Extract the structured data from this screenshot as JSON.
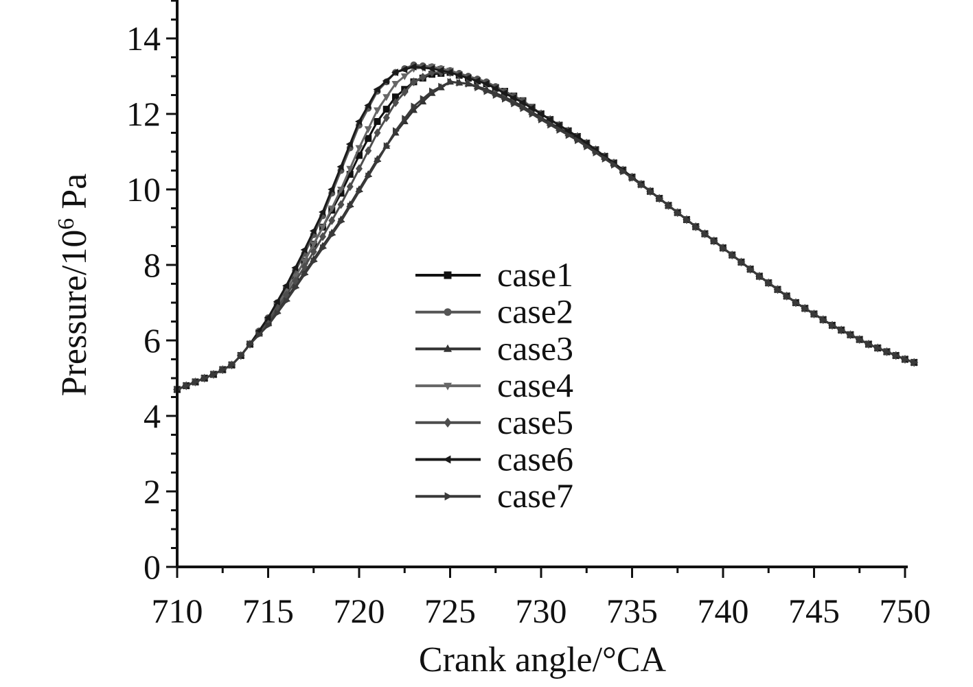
{
  "chart_data": {
    "type": "line",
    "title": "",
    "xlabel": "Crank angle/°CA",
    "ylabel": {
      "prefix": "Pressure/10",
      "superscript": "6",
      "suffix": " Pa"
    },
    "xlim": [
      710,
      751
    ],
    "ylim": [
      0,
      15
    ],
    "xticks": [
      "710",
      "715",
      "720",
      "725",
      "730",
      "735",
      "740",
      "745",
      "750"
    ],
    "yticks": [
      "0",
      "2",
      "4",
      "6",
      "8",
      "10",
      "12",
      "14"
    ],
    "grid": false,
    "legend_position": "center",
    "series": [
      {
        "name": "case1",
        "color": "#111111",
        "marker": "square",
        "points": [
          [
            710,
            4.7
          ],
          [
            711,
            4.9
          ],
          [
            712,
            5.1
          ],
          [
            713,
            5.35
          ],
          [
            713.5,
            5.6
          ],
          [
            714,
            5.9
          ],
          [
            715,
            6.5
          ],
          [
            716,
            7.3
          ],
          [
            717,
            8.1
          ],
          [
            718,
            9.0
          ],
          [
            719,
            9.9
          ],
          [
            720,
            10.9
          ],
          [
            721,
            11.8
          ],
          [
            722,
            12.45
          ],
          [
            723,
            12.85
          ],
          [
            724,
            13.05
          ],
          [
            725,
            13.1
          ],
          [
            726,
            12.95
          ],
          [
            727,
            12.8
          ],
          [
            728,
            12.6
          ],
          [
            729,
            12.35
          ],
          [
            730,
            12.0
          ],
          [
            732,
            11.4
          ],
          [
            734,
            10.7
          ],
          [
            736,
            9.95
          ],
          [
            738,
            9.2
          ],
          [
            740,
            8.45
          ],
          [
            742,
            7.7
          ],
          [
            744,
            7.0
          ],
          [
            746,
            6.4
          ],
          [
            748,
            5.9
          ],
          [
            750,
            5.5
          ],
          [
            750.6,
            5.4
          ]
        ]
      },
      {
        "name": "case2",
        "color": "#555555",
        "marker": "circle",
        "points": [
          [
            710,
            4.7
          ],
          [
            711,
            4.9
          ],
          [
            712,
            5.1
          ],
          [
            713,
            5.35
          ],
          [
            713.5,
            5.6
          ],
          [
            714,
            5.9
          ],
          [
            715,
            6.6
          ],
          [
            716,
            7.4
          ],
          [
            717,
            8.3
          ],
          [
            718,
            9.3
          ],
          [
            719,
            10.5
          ],
          [
            720,
            11.7
          ],
          [
            721,
            12.6
          ],
          [
            722,
            13.1
          ],
          [
            723,
            13.3
          ],
          [
            724,
            13.25
          ],
          [
            725,
            13.15
          ],
          [
            726,
            13.0
          ],
          [
            727,
            12.85
          ],
          [
            728,
            12.6
          ],
          [
            729,
            12.35
          ],
          [
            730,
            12.0
          ],
          [
            732,
            11.4
          ],
          [
            734,
            10.7
          ],
          [
            736,
            9.95
          ],
          [
            738,
            9.2
          ],
          [
            740,
            8.45
          ],
          [
            742,
            7.7
          ],
          [
            744,
            7.0
          ],
          [
            746,
            6.4
          ],
          [
            748,
            5.9
          ],
          [
            750,
            5.5
          ],
          [
            750.6,
            5.4
          ]
        ]
      },
      {
        "name": "case3",
        "color": "#333333",
        "marker": "triangle-up",
        "points": [
          [
            710,
            4.7
          ],
          [
            711,
            4.9
          ],
          [
            712,
            5.1
          ],
          [
            713,
            5.35
          ],
          [
            713.5,
            5.6
          ],
          [
            714,
            5.9
          ],
          [
            715,
            6.45
          ],
          [
            716,
            7.1
          ],
          [
            717,
            7.8
          ],
          [
            718,
            8.5
          ],
          [
            719,
            9.2
          ],
          [
            720,
            10.0
          ],
          [
            721,
            10.8
          ],
          [
            722,
            11.5
          ],
          [
            723,
            12.1
          ],
          [
            724,
            12.55
          ],
          [
            725,
            12.85
          ],
          [
            726,
            12.8
          ],
          [
            727,
            12.65
          ],
          [
            728,
            12.45
          ],
          [
            729,
            12.2
          ],
          [
            730,
            11.9
          ],
          [
            732,
            11.35
          ],
          [
            734,
            10.7
          ],
          [
            736,
            9.95
          ],
          [
            738,
            9.2
          ],
          [
            740,
            8.45
          ],
          [
            742,
            7.7
          ],
          [
            744,
            7.0
          ],
          [
            746,
            6.4
          ],
          [
            748,
            5.9
          ],
          [
            750,
            5.5
          ],
          [
            750.6,
            5.4
          ]
        ]
      },
      {
        "name": "case4",
        "color": "#666666",
        "marker": "triangle-down",
        "points": [
          [
            710,
            4.7
          ],
          [
            711,
            4.9
          ],
          [
            712,
            5.1
          ],
          [
            713,
            5.35
          ],
          [
            713.5,
            5.6
          ],
          [
            714,
            5.9
          ],
          [
            715,
            6.55
          ],
          [
            716,
            7.3
          ],
          [
            717,
            8.1
          ],
          [
            718,
            9.0
          ],
          [
            719,
            10.0
          ],
          [
            720,
            11.1
          ],
          [
            721,
            12.1
          ],
          [
            722,
            12.8
          ],
          [
            723,
            13.2
          ],
          [
            724,
            13.25
          ],
          [
            725,
            13.15
          ],
          [
            726,
            12.95
          ],
          [
            727,
            12.8
          ],
          [
            728,
            12.55
          ],
          [
            729,
            12.3
          ],
          [
            730,
            12.0
          ],
          [
            732,
            11.4
          ],
          [
            734,
            10.7
          ],
          [
            736,
            9.95
          ],
          [
            738,
            9.2
          ],
          [
            740,
            8.45
          ],
          [
            742,
            7.7
          ],
          [
            744,
            7.0
          ],
          [
            746,
            6.4
          ],
          [
            748,
            5.9
          ],
          [
            750,
            5.5
          ],
          [
            750.6,
            5.4
          ]
        ]
      },
      {
        "name": "case5",
        "color": "#4d4d4d",
        "marker": "diamond",
        "points": [
          [
            710,
            4.7
          ],
          [
            711,
            4.9
          ],
          [
            712,
            5.1
          ],
          [
            713,
            5.35
          ],
          [
            713.5,
            5.6
          ],
          [
            714,
            5.9
          ],
          [
            715,
            6.5
          ],
          [
            716,
            7.2
          ],
          [
            717,
            7.95
          ],
          [
            718,
            8.75
          ],
          [
            719,
            9.6
          ],
          [
            720,
            10.55
          ],
          [
            721,
            11.5
          ],
          [
            722,
            12.3
          ],
          [
            723,
            12.85
          ],
          [
            724,
            13.1
          ],
          [
            725,
            13.1
          ],
          [
            726,
            12.95
          ],
          [
            727,
            12.8
          ],
          [
            728,
            12.55
          ],
          [
            729,
            12.3
          ],
          [
            730,
            12.0
          ],
          [
            732,
            11.4
          ],
          [
            734,
            10.7
          ],
          [
            736,
            9.95
          ],
          [
            738,
            9.2
          ],
          [
            740,
            8.45
          ],
          [
            742,
            7.7
          ],
          [
            744,
            7.0
          ],
          [
            746,
            6.4
          ],
          [
            748,
            5.9
          ],
          [
            750,
            5.5
          ],
          [
            750.6,
            5.4
          ]
        ]
      },
      {
        "name": "case6",
        "color": "#1a1a1a",
        "marker": "triangle-left",
        "points": [
          [
            710,
            4.7
          ],
          [
            711,
            4.9
          ],
          [
            712,
            5.1
          ],
          [
            713,
            5.35
          ],
          [
            713.5,
            5.6
          ],
          [
            714,
            5.9
          ],
          [
            715,
            6.6
          ],
          [
            716,
            7.45
          ],
          [
            717,
            8.4
          ],
          [
            718,
            9.4
          ],
          [
            719,
            10.6
          ],
          [
            720,
            11.8
          ],
          [
            721,
            12.65
          ],
          [
            722,
            13.1
          ],
          [
            723,
            13.25
          ],
          [
            724,
            13.2
          ],
          [
            725,
            13.1
          ],
          [
            726,
            12.95
          ],
          [
            727,
            12.8
          ],
          [
            728,
            12.55
          ],
          [
            729,
            12.3
          ],
          [
            730,
            12.0
          ],
          [
            732,
            11.4
          ],
          [
            734,
            10.7
          ],
          [
            736,
            9.95
          ],
          [
            738,
            9.2
          ],
          [
            740,
            8.45
          ],
          [
            742,
            7.7
          ],
          [
            744,
            7.0
          ],
          [
            746,
            6.4
          ],
          [
            748,
            5.9
          ],
          [
            750,
            5.5
          ],
          [
            750.6,
            5.4
          ]
        ]
      },
      {
        "name": "case7",
        "color": "#3a3a3a",
        "marker": "triangle-right",
        "points": [
          [
            710,
            4.7
          ],
          [
            711,
            4.9
          ],
          [
            712,
            5.1
          ],
          [
            713,
            5.35
          ],
          [
            713.5,
            5.6
          ],
          [
            714,
            5.9
          ],
          [
            715,
            6.4
          ],
          [
            716,
            7.05
          ],
          [
            717,
            7.75
          ],
          [
            718,
            8.45
          ],
          [
            719,
            9.15
          ],
          [
            720,
            9.95
          ],
          [
            721,
            10.75
          ],
          [
            722,
            11.55
          ],
          [
            723,
            12.2
          ],
          [
            724,
            12.6
          ],
          [
            725,
            12.85
          ],
          [
            726,
            12.8
          ],
          [
            727,
            12.6
          ],
          [
            728,
            12.4
          ],
          [
            729,
            12.15
          ],
          [
            730,
            11.85
          ],
          [
            732,
            11.3
          ],
          [
            734,
            10.65
          ],
          [
            736,
            9.95
          ],
          [
            738,
            9.2
          ],
          [
            740,
            8.45
          ],
          [
            742,
            7.7
          ],
          [
            744,
            7.0
          ],
          [
            746,
            6.4
          ],
          [
            748,
            5.9
          ],
          [
            750,
            5.5
          ],
          [
            750.6,
            5.4
          ]
        ]
      }
    ]
  }
}
